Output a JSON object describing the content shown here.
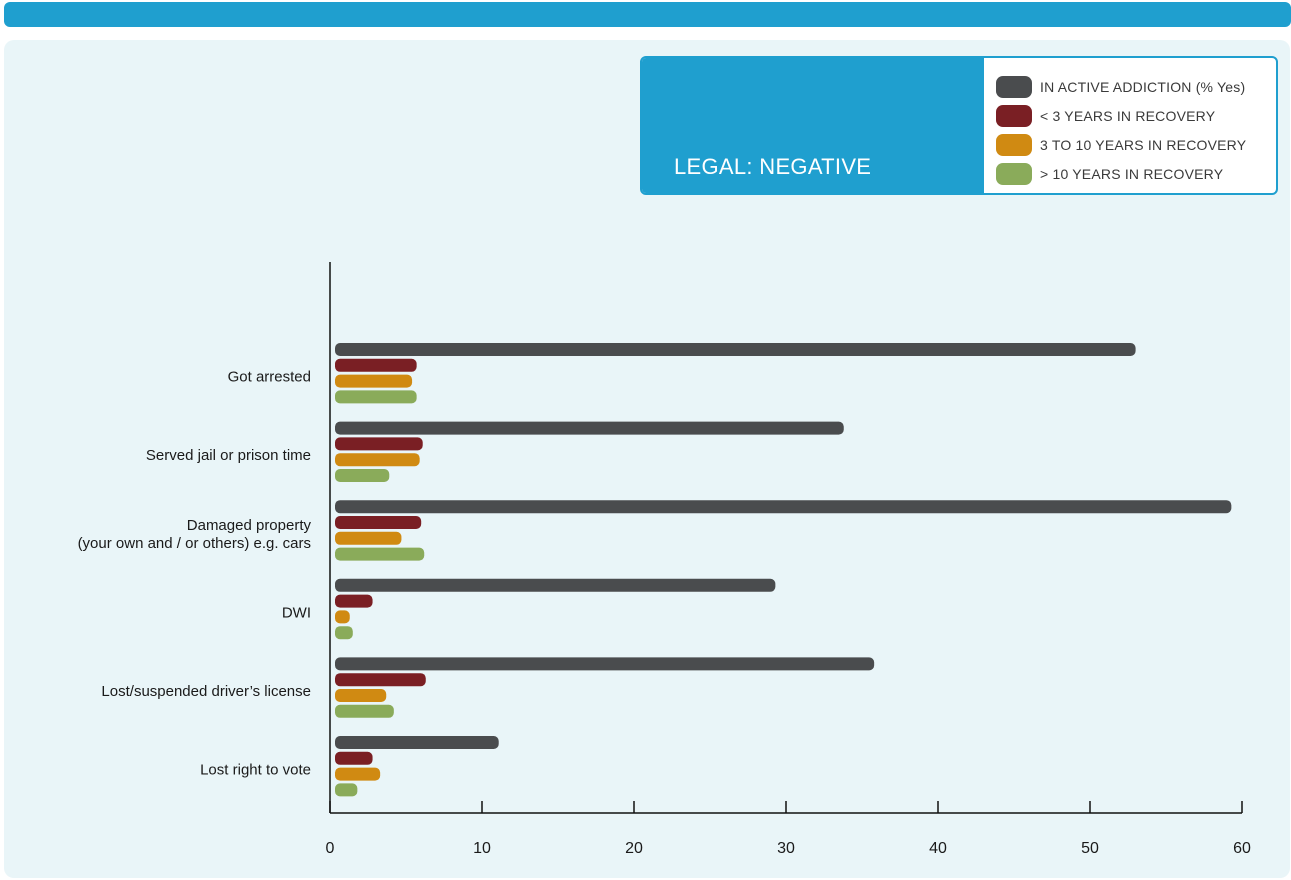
{
  "header": {
    "title": "LEGAL: NEGATIVE"
  },
  "colors": {
    "accent": "#1f9fcf",
    "panel_bg": "#e9f5f8"
  },
  "chart_data": {
    "type": "bar",
    "orientation": "horizontal",
    "title": "LEGAL: NEGATIVE",
    "categories": [
      "Got arrested",
      "Served jail or prison time",
      "Damaged property\n(your own and / or others) e.g. cars",
      "DWI",
      "Lost/suspended driver’s license",
      "Lost right to vote"
    ],
    "series": [
      {
        "name": "IN ACTIVE ADDICTION (% Yes)",
        "color": "#4a4c4e",
        "values": [
          53,
          33.8,
          59.3,
          29.3,
          35.8,
          11.1
        ]
      },
      {
        "name": "< 3 YEARS IN RECOVERY",
        "color": "#7a1f24",
        "values": [
          5.7,
          6.1,
          6.0,
          2.8,
          6.3,
          2.8
        ]
      },
      {
        "name": "3 TO 10 YEARS IN RECOVERY",
        "color": "#d08a12",
        "values": [
          5.4,
          5.9,
          4.7,
          1.3,
          3.7,
          3.3
        ]
      },
      {
        "name": "> 10 YEARS IN RECOVERY",
        "color": "#8aab5a",
        "values": [
          5.7,
          3.9,
          6.2,
          1.5,
          4.2,
          1.8
        ]
      }
    ],
    "xlim": [
      0,
      60
    ],
    "xticks": [
      0,
      10,
      20,
      30,
      40,
      50,
      60
    ],
    "xlabel": "",
    "ylabel": "",
    "grid": false,
    "legend_position": "top-right"
  }
}
